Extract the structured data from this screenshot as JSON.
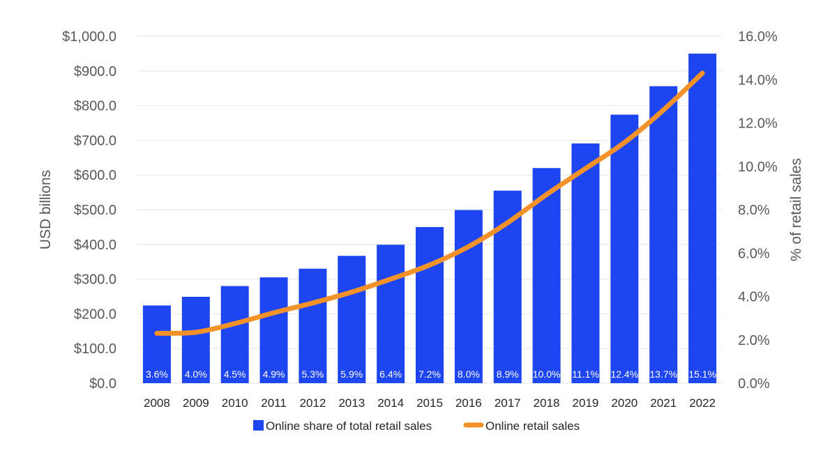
{
  "chart_data": {
    "type": "bar",
    "categories": [
      "2008",
      "2009",
      "2010",
      "2011",
      "2012",
      "2013",
      "2014",
      "2015",
      "2016",
      "2017",
      "2018",
      "2019",
      "2020",
      "2021",
      "2022"
    ],
    "series": [
      {
        "name": "Online share of total retail sales",
        "kind": "bar",
        "axis": "left",
        "color": "#1e46f0",
        "values": [
          224,
          249,
          280,
          305,
          330,
          367,
          399,
          450,
          499,
          555,
          620,
          691,
          774,
          856,
          950
        ],
        "data_labels": [
          "3.6%",
          "4.0%",
          "4.5%",
          "4.9%",
          "5.3%",
          "5.9%",
          "6.4%",
          "7.2%",
          "8.0%",
          "8.9%",
          "10.0%",
          "11.1%",
          "12.4%",
          "13.7%",
          "15.1%"
        ]
      },
      {
        "name": "Online retail sales",
        "kind": "line",
        "axis": "right",
        "color": "#f4922a",
        "values": [
          2.3,
          2.35,
          2.75,
          3.25,
          3.7,
          4.2,
          4.8,
          5.45,
          6.3,
          7.4,
          8.7,
          9.9,
          11.1,
          12.6,
          14.3
        ]
      }
    ],
    "ylabel_left": "USD billions",
    "ylabel_right": "% of retail sales",
    "ylim_left": [
      0,
      1000
    ],
    "ylim_right": [
      0,
      16
    ],
    "yticks_left": [
      "$0.0",
      "$100.0",
      "$200.0",
      "$300.0",
      "$400.0",
      "$500.0",
      "$600.0",
      "$700.0",
      "$800.0",
      "$900.0",
      "$1,000.0"
    ],
    "yticks_right": [
      "0.0%",
      "2.0%",
      "4.0%",
      "6.0%",
      "8.0%",
      "10.0%",
      "12.0%",
      "14.0%",
      "16.0%"
    ],
    "grid": true,
    "legend_position": "bottom"
  }
}
